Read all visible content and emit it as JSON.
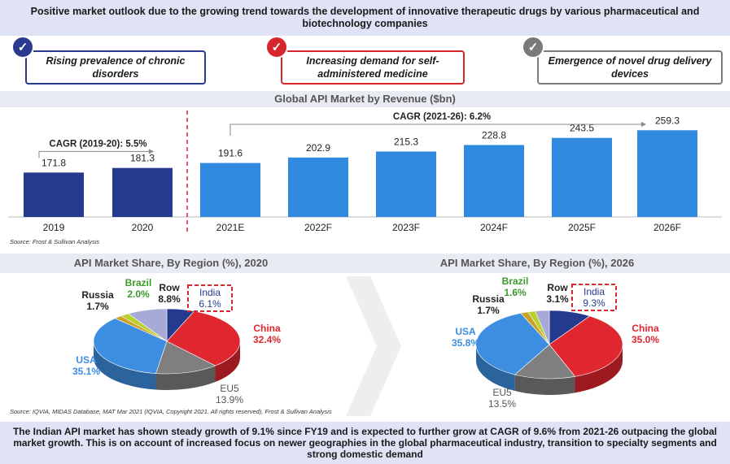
{
  "header": {
    "text": "Positive market outlook due to the growing trend towards the development of innovative therapeutic drugs by various pharmaceutical and biotechnology companies"
  },
  "drivers": [
    {
      "label": "Rising prevalence of chronic disorders",
      "color": "#2b3a8f"
    },
    {
      "label": "Increasing demand for self-administered medicine",
      "color": "#d6262e"
    },
    {
      "label": "Emergence of novel drug delivery devices",
      "color": "#7a7a7a"
    }
  ],
  "chart_data": [
    {
      "type": "bar",
      "title": "Global API Market by Revenue ($bn)",
      "categories": [
        "2019",
        "2020",
        "2021E",
        "2022F",
        "2023F",
        "2024F",
        "2025F",
        "2026F"
      ],
      "values": [
        171.8,
        181.3,
        191.6,
        202.9,
        215.3,
        228.8,
        243.5,
        259.3
      ],
      "value_labels": [
        "171.8",
        "181.3",
        "191.6",
        "202.9",
        "215.3",
        "228.8",
        "243.5",
        "259.3"
      ],
      "historical_color": "#243a8f",
      "forecast_color": "#2f8ae0",
      "annotations": {
        "cagr_historical": "CAGR (2019-20): 5.5%",
        "cagr_forecast": "CAGR (2021-26): 6.2%"
      },
      "source": "Source: Frost & Sullivan Analysis"
    },
    {
      "type": "pie",
      "title": "API Market Share, By Region (%), 2020",
      "slices": [
        {
          "name": "India",
          "value": 6.1,
          "label": "6.1%",
          "color": "#243a8f"
        },
        {
          "name": "China",
          "value": 32.4,
          "label": "32.4%",
          "color": "#e0262e"
        },
        {
          "name": "EU5",
          "value": 13.9,
          "label": "13.9%",
          "color": "#7f7f7f"
        },
        {
          "name": "USA",
          "value": 35.1,
          "label": "35.1%",
          "color": "#3d8ee0"
        },
        {
          "name": "Russia",
          "value": 1.7,
          "label": "1.7%",
          "color": "#c9a227"
        },
        {
          "name": "Brazil",
          "value": 2.0,
          "label": "2.0%",
          "color": "#b9cf2a"
        },
        {
          "name": "Row",
          "value": 8.8,
          "label": "8.8%",
          "color": "#a7a9d6"
        }
      ]
    },
    {
      "type": "pie",
      "title": "API Market Share, By Region (%), 2026",
      "slices": [
        {
          "name": "India",
          "value": 9.3,
          "label": "9.3%",
          "color": "#243a8f"
        },
        {
          "name": "China",
          "value": 35.0,
          "label": "35.0%",
          "color": "#e0262e"
        },
        {
          "name": "EU5",
          "value": 13.5,
          "label": "13.5%",
          "color": "#7f7f7f"
        },
        {
          "name": "USA",
          "value": 35.8,
          "label": "35.8%",
          "color": "#3d8ee0"
        },
        {
          "name": "Russia",
          "value": 1.7,
          "label": "1.7%",
          "color": "#c9a227"
        },
        {
          "name": "Brazil",
          "value": 1.6,
          "label": "1.6%",
          "color": "#b9cf2a"
        },
        {
          "name": "Row",
          "value": 3.1,
          "label": "3.1%",
          "color": "#a7a9d6"
        }
      ]
    }
  ],
  "pie_source": "Source: IQVIA, MIDAS Database, MAT Mar 2021 (IQVIA, Copyright 2021. All rights reserved), Frost & Sullivan Analysis",
  "footer": {
    "text": "The Indian API market has shown steady growth of 9.1% since FY19 and is expected to further grow  at CAGR of 9.6% from 2021-26 outpacing the global market growth. This is on account of increased focus on newer geographies in the global pharmaceutical industry, transition to specialty segments and strong domestic demand"
  },
  "colors": {
    "banner_bg": "#dfe3f5",
    "highlight_box": "#d6262e",
    "arrow_shape": "#eeeeee"
  }
}
